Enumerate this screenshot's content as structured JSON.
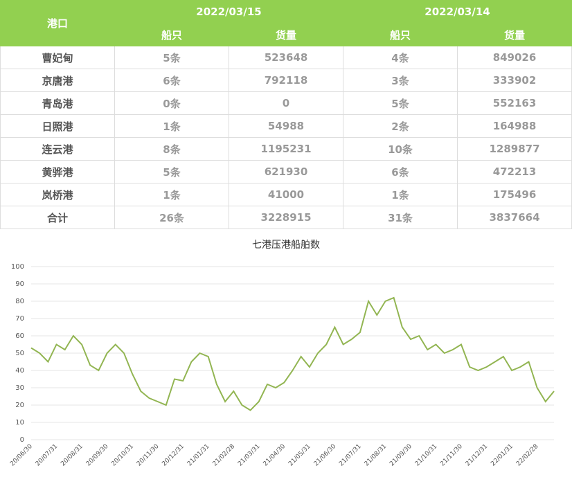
{
  "table": {
    "header": {
      "port": "港口",
      "dates": [
        "2022/03/15",
        "2022/03/14"
      ],
      "sub": [
        "船只",
        "货量",
        "船只",
        "货量"
      ]
    },
    "rows": [
      [
        "曹妃甸",
        "5条",
        "523648",
        "4条",
        "849026"
      ],
      [
        "京唐港",
        "6条",
        "792118",
        "3条",
        "333902"
      ],
      [
        "青岛港",
        "0条",
        "0",
        "5条",
        "552163"
      ],
      [
        "日照港",
        "1条",
        "54988",
        "2条",
        "164988"
      ],
      [
        "连云港",
        "8条",
        "1195231",
        "10条",
        "1289877"
      ],
      [
        "黄骅港",
        "5条",
        "621930",
        "6条",
        "472213"
      ],
      [
        "岚桥港",
        "1条",
        "41000",
        "1条",
        "175496"
      ],
      [
        "合计",
        "26条",
        "3228915",
        "31条",
        "3837664"
      ]
    ]
  },
  "chart_data": {
    "type": "line",
    "title": "七港压港船舶数",
    "categories": [
      "20/06/30",
      null,
      null,
      "20/07/31",
      null,
      null,
      "20/08/31",
      null,
      null,
      "20/09/30",
      null,
      null,
      "20/10/31",
      null,
      null,
      "20/11/30",
      null,
      null,
      "20/12/31",
      null,
      null,
      "21/01/31",
      null,
      null,
      "21/02/28",
      null,
      null,
      "21/03/31",
      null,
      null,
      "21/04/30",
      null,
      null,
      "21/05/31",
      null,
      null,
      "21/06/30",
      null,
      null,
      "21/07/31",
      null,
      null,
      "21/08/31",
      null,
      null,
      "21/09/30",
      null,
      null,
      "21/10/31",
      null,
      null,
      "21/11/30",
      null,
      null,
      "21/12/31",
      null,
      null,
      "22/01/31",
      null,
      null,
      "22/02/28",
      null,
      null
    ],
    "series": [
      {
        "color": "#92b552",
        "values": [
          53,
          50,
          45,
          55,
          52,
          60,
          55,
          43,
          40,
          50,
          55,
          50,
          38,
          28,
          24,
          22,
          20,
          35,
          34,
          45,
          50,
          48,
          32,
          22,
          28,
          20,
          17,
          22,
          32,
          30,
          33,
          40,
          48,
          42,
          50,
          55,
          65,
          55,
          58,
          62,
          80,
          72,
          80,
          82,
          65,
          58,
          60,
          52,
          55,
          50,
          52,
          55,
          42,
          40,
          42,
          45,
          48,
          40,
          42,
          45,
          30,
          22,
          28
        ]
      }
    ],
    "ylim": [
      0,
      100
    ],
    "yticks": [
      0,
      10,
      20,
      30,
      40,
      50,
      60,
      70,
      80,
      90,
      100
    ],
    "grid": true
  }
}
